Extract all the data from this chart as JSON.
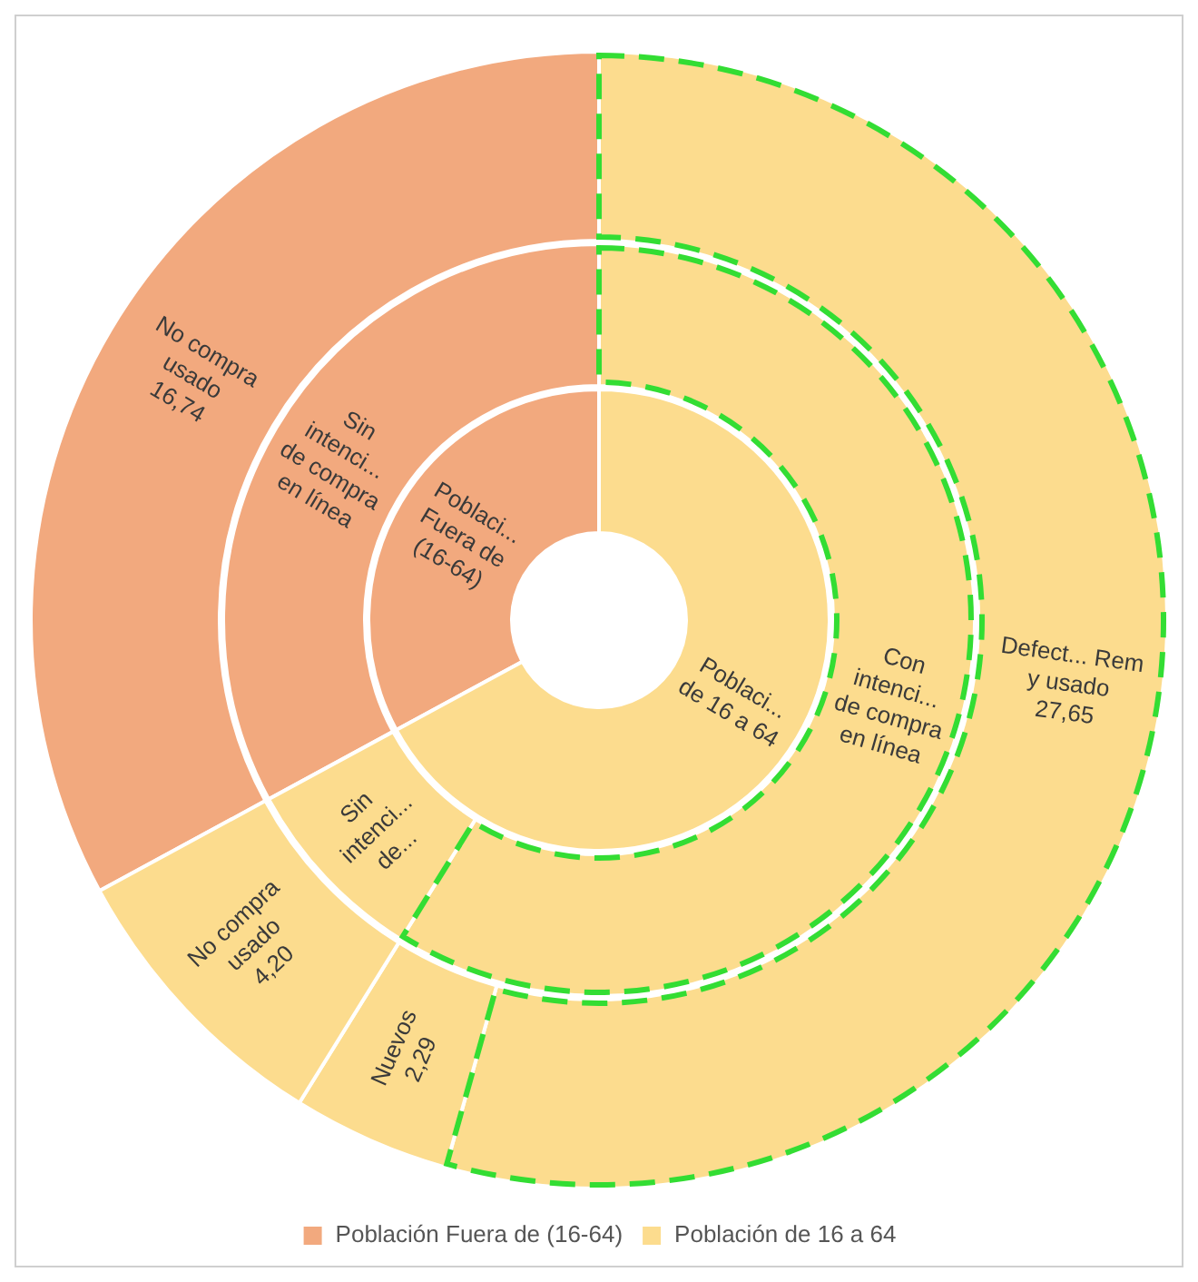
{
  "chart_data": [
    {
      "type": "donut",
      "categories": [
        "No compra usado",
        "Defect... Rem y usado",
        "Nuevos",
        "No compra usado"
      ],
      "values": [
        16.74,
        27.65,
        2.29,
        4.2
      ],
      "value_labels": [
        "16,74",
        "27,65",
        "2,29",
        "4,20"
      ],
      "colors": [
        "#f2a97e",
        "#fcdc8e",
        "#fcdc8e",
        "#fcdc8e"
      ]
    },
    {
      "type": "donut",
      "categories": [
        "Sin intenci... de compra en línea",
        "Con intenci... de compra en línea",
        "Sin intenci... de..."
      ],
      "values": [
        32.9,
        58.84,
        8.26
      ],
      "colors": [
        "#f2a97e",
        "#fcdc8e",
        "#fcdc8e"
      ]
    },
    {
      "type": "donut",
      "categories": [
        "Población Fuera de (16-64)",
        "Población de 16 a 64"
      ],
      "values": [
        32.9,
        67.1
      ],
      "colors": [
        "#f2a97e",
        "#fcdc8e"
      ],
      "legend": "bottom",
      "annotations": [
        "Poblaci... Fuera de (16-64)",
        "Poblaci... de 16 a 64"
      ]
    }
  ]
}
